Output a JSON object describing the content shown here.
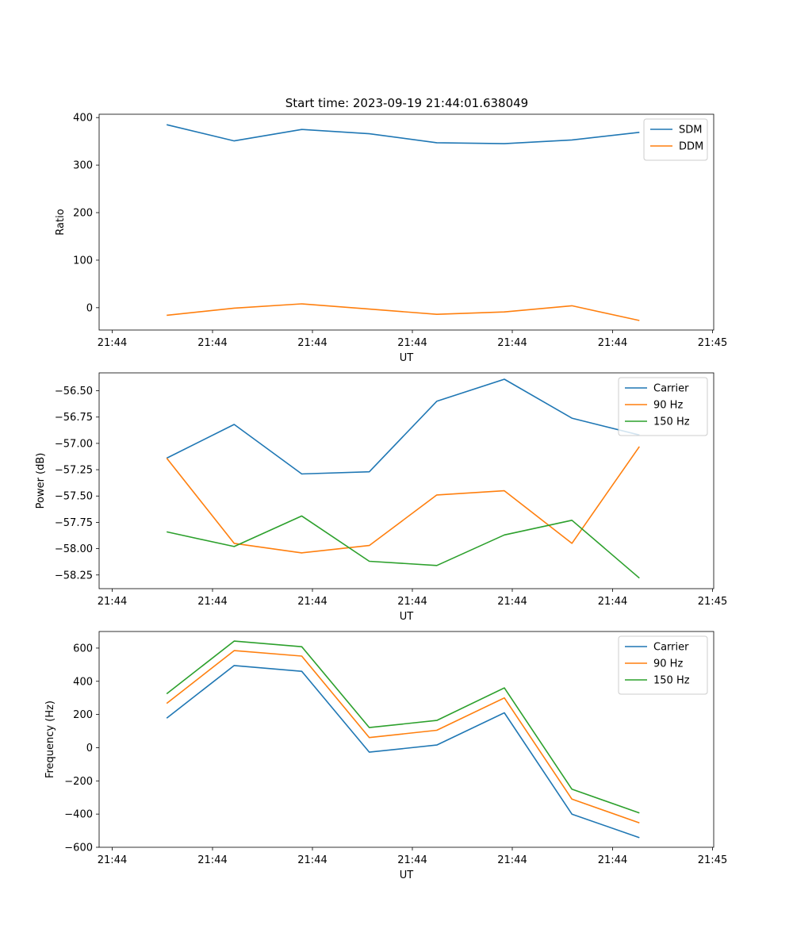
{
  "figure": {
    "title": "Start time: 2023-09-19 21:44:01.638049"
  },
  "chart_data": [
    {
      "type": "line",
      "xlabel": "UT",
      "ylabel": "Ratio",
      "xtick_labels": [
        "21:44",
        "21:44",
        "21:44",
        "21:44",
        "21:44",
        "21:44",
        "21:45"
      ],
      "x": [
        1,
        2,
        3,
        4,
        5,
        6,
        7,
        8
      ],
      "xlim": [
        0,
        9.1
      ],
      "ylim": [
        -47,
        407
      ],
      "yticks": [
        0,
        100,
        200,
        300,
        400
      ],
      "ytick_labels": [
        "0",
        "100",
        "200",
        "300",
        "400"
      ],
      "legend": "top-right",
      "series": [
        {
          "name": "SDM",
          "color": "#1f77b4",
          "values": [
            385,
            351,
            375,
            366,
            347,
            345,
            353,
            369
          ]
        },
        {
          "name": "DDM",
          "color": "#ff7f0e",
          "values": [
            -16,
            -1,
            8,
            -3,
            -14,
            -9,
            4,
            -27
          ]
        }
      ]
    },
    {
      "type": "line",
      "xlabel": "UT",
      "ylabel": "Power (dB)",
      "xtick_labels": [
        "21:44",
        "21:44",
        "21:44",
        "21:44",
        "21:44",
        "21:44",
        "21:45"
      ],
      "x": [
        1,
        2,
        3,
        4,
        5,
        6,
        7,
        8
      ],
      "xlim": [
        0,
        9.1
      ],
      "ylim": [
        -58.38,
        -56.33
      ],
      "yticks": [
        -58.25,
        -58.0,
        -57.75,
        -57.5,
        -57.25,
        -57.0,
        -56.75,
        -56.5
      ],
      "ytick_labels": [
        "−58.25",
        "−58.00",
        "−57.75",
        "−57.50",
        "−57.25",
        "−57.00",
        "−56.75",
        "−56.50"
      ],
      "legend": "top-right",
      "series": [
        {
          "name": "Carrier",
          "color": "#1f77b4",
          "values": [
            -57.14,
            -56.82,
            -57.29,
            -57.27,
            -56.6,
            -56.39,
            -56.76,
            -56.92
          ]
        },
        {
          "name": "90 Hz",
          "color": "#ff7f0e",
          "values": [
            -57.14,
            -57.95,
            -58.04,
            -57.97,
            -57.49,
            -57.45,
            -57.95,
            -57.03
          ]
        },
        {
          "name": "150 Hz",
          "color": "#2ca02c",
          "values": [
            -57.84,
            -57.98,
            -57.69,
            -58.12,
            -58.16,
            -57.87,
            -57.73,
            -58.28
          ]
        }
      ]
    },
    {
      "type": "line",
      "xlabel": "UT",
      "ylabel": "Frequency (Hz)",
      "xtick_labels": [
        "21:44",
        "21:44",
        "21:44",
        "21:44",
        "21:44",
        "21:44",
        "21:45"
      ],
      "x": [
        1,
        2,
        3,
        4,
        5,
        6,
        7,
        8
      ],
      "xlim": [
        0,
        9.1
      ],
      "ylim": [
        -600,
        700
      ],
      "yticks": [
        -600,
        -400,
        -200,
        0,
        200,
        400,
        600
      ],
      "ytick_labels": [
        "−600",
        "−400",
        "−200",
        "0",
        "200",
        "400",
        "600"
      ],
      "legend": "top-right",
      "series": [
        {
          "name": "Carrier",
          "color": "#1f77b4",
          "values": [
            178,
            495,
            460,
            -27,
            16,
            210,
            -400,
            -542
          ]
        },
        {
          "name": "90 Hz",
          "color": "#ff7f0e",
          "values": [
            267,
            585,
            552,
            61,
            105,
            300,
            -310,
            -453
          ]
        },
        {
          "name": "150 Hz",
          "color": "#2ca02c",
          "values": [
            325,
            642,
            608,
            121,
            164,
            360,
            -250,
            -393
          ]
        }
      ]
    }
  ]
}
